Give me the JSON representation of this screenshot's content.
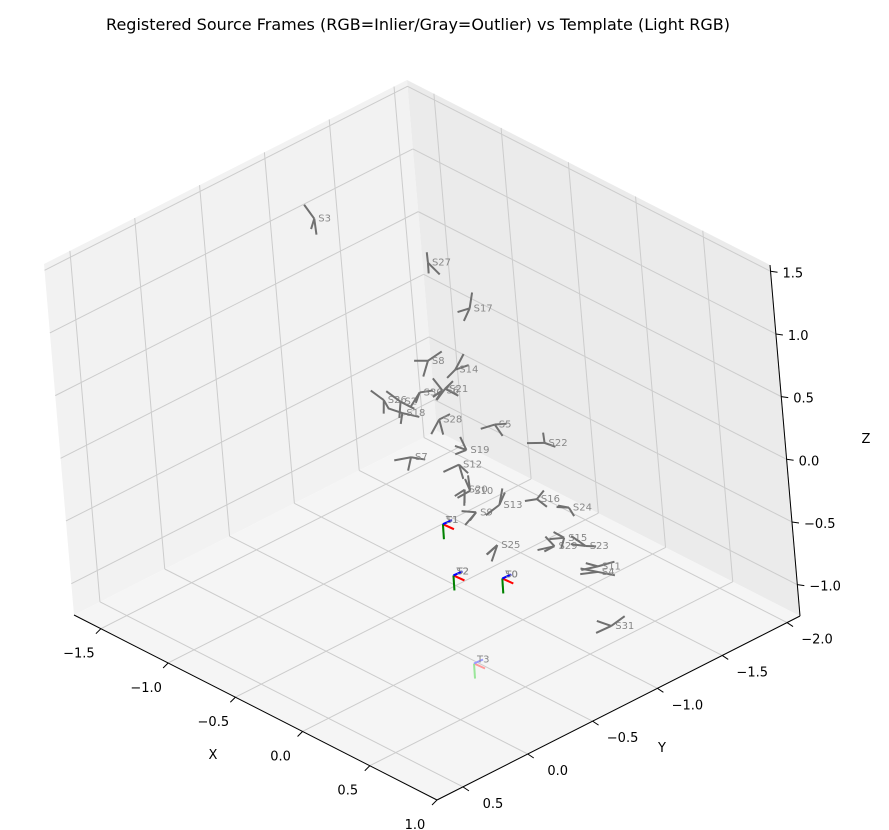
{
  "chart_data": {
    "type": "3d-frames",
    "title": "Registered Source Frames (RGB=Inlier/Gray=Outlier) vs Template (Light RGB)",
    "xlabel": "X",
    "ylabel": "Y",
    "zlabel": "Z",
    "x_ticks": [
      "−1.5",
      "−1.0",
      "−0.5",
      "0.0",
      "0.5",
      "1.0"
    ],
    "y_ticks": [
      "−2.0",
      "−1.5",
      "−1.0",
      "−0.5",
      "0.0",
      "0.5"
    ],
    "z_ticks": [
      "−1.0",
      "−0.5",
      "0.0",
      "0.5",
      "1.0",
      "1.5"
    ],
    "xlim": [
      -1.7,
      1.0
    ],
    "ylim": [
      -2.1,
      0.7
    ],
    "zlim": [
      -1.25,
      1.55
    ],
    "colors": {
      "outlier": "#707070",
      "inlier_x": "#ff0000",
      "inlier_y": "#008000",
      "inlier_z": "#0000ff",
      "template_x": "#ff9a9a",
      "template_y": "#9ae69a",
      "template_z": "#9a9aff",
      "label": "#888888",
      "pane": "#f2f2f2",
      "grid": "#cccccc"
    },
    "outliers": [
      {
        "label": "S3",
        "x": -1.23,
        "y": -0.88,
        "z": 1.34
      },
      {
        "label": "S27",
        "x": -1.08,
        "y": -1.55,
        "z": 0.72
      },
      {
        "label": "S26",
        "x": -0.2,
        "y": -0.3,
        "z": 0.76
      },
      {
        "label": "S2",
        "x": -0.26,
        "y": -0.48,
        "z": 0.62
      },
      {
        "label": "S18",
        "x": -0.18,
        "y": -0.41,
        "z": 0.61
      },
      {
        "label": "S7",
        "x": 0.3,
        "y": 0.01,
        "z": 0.74
      },
      {
        "label": "S8",
        "x": -0.63,
        "y": -1.06,
        "z": 0.44
      },
      {
        "label": "S30",
        "x": -0.41,
        "y": -0.77,
        "z": 0.46
      },
      {
        "label": "S17",
        "x": -1.07,
        "y": -1.82,
        "z": 0.22
      },
      {
        "label": "S28",
        "x": -0.35,
        "y": -0.84,
        "z": 0.24
      },
      {
        "label": "S6",
        "x": -0.59,
        "y": -1.11,
        "z": 0.2
      },
      {
        "label": "S21",
        "x": -0.62,
        "y": -1.16,
        "z": 0.17
      },
      {
        "label": "S9",
        "x": 0.37,
        "y": -0.37,
        "z": 0.14
      },
      {
        "label": "S14",
        "x": -0.76,
        "y": -1.38,
        "z": 0.13
      },
      {
        "label": "S25",
        "x": 0.66,
        "y": -0.23,
        "z": 0.11
      },
      {
        "label": "S13",
        "x": 0.23,
        "y": -0.68,
        "z": -0.04
      },
      {
        "label": "S20",
        "x": -0.02,
        "y": -0.67,
        "z": -0.05
      },
      {
        "label": "S10",
        "x": -0.02,
        "y": -0.71,
        "z": -0.08
      },
      {
        "label": "S12",
        "x": -0.31,
        "y": -0.92,
        "z": -0.14
      },
      {
        "label": "S19",
        "x": -0.39,
        "y": -1.06,
        "z": -0.14
      },
      {
        "label": "S5",
        "x": -0.71,
        "y": -1.59,
        "z": -0.39
      },
      {
        "label": "S29",
        "x": 0.21,
        "y": -1.08,
        "z": -0.59
      },
      {
        "label": "S16",
        "x": -0.19,
        "y": -1.36,
        "z": -0.58
      },
      {
        "label": "S15",
        "x": 0.07,
        "y": -1.29,
        "z": -0.71
      },
      {
        "label": "S22",
        "x": -0.64,
        "y": -1.88,
        "z": -0.65
      },
      {
        "label": "S24",
        "x": -0.21,
        "y": -1.61,
        "z": -0.79
      },
      {
        "label": "S23",
        "x": -0.01,
        "y": -1.52,
        "z": -0.94
      },
      {
        "label": "S4",
        "x": 0.11,
        "y": -1.48,
        "z": -1.06
      },
      {
        "label": "S11",
        "x": 0.05,
        "y": -1.54,
        "z": -1.08
      },
      {
        "label": "S31",
        "x": 0.43,
        "y": -1.24,
        "z": -1.19
      }
    ],
    "inliers": [
      {
        "label": "S0",
        "x": 0.54,
        "y": -0.36,
        "z": -0.29
      },
      {
        "label": "S1",
        "x": 0.43,
        "y": -0.06,
        "z": 0.24
      },
      {
        "label": "S2",
        "x": 0.93,
        "y": 0.37,
        "z": 0.33
      }
    ],
    "templates": [
      {
        "label": "T0",
        "x": 0.54,
        "y": -0.36,
        "z": -0.29
      },
      {
        "label": "T1",
        "x": 0.43,
        "y": -0.06,
        "z": 0.24
      },
      {
        "label": "T2",
        "x": 0.93,
        "y": 0.37,
        "z": 0.33
      },
      {
        "label": "T3",
        "x": 1.0,
        "y": 0.34,
        "z": -0.35
      }
    ]
  }
}
